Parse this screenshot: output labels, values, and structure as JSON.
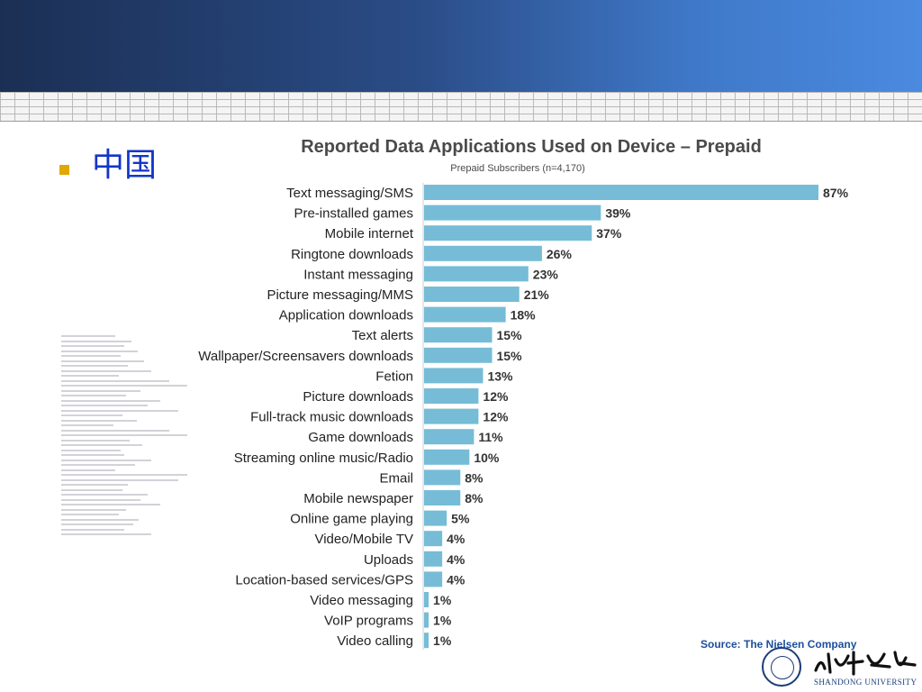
{
  "slide": {
    "bullet_text": "中国"
  },
  "source_text": "Source: The Nielsen Company",
  "logo": {
    "text": "山东大学",
    "subtitle": "SHANDONG UNIVERSITY"
  },
  "colors": {
    "bar": "#76bcd6",
    "bullet": "#e0a800",
    "bullet_text": "#1236c8",
    "header_dark": "#1b2f54",
    "header_light": "#4a8ae0",
    "source": "#1b4f9c"
  },
  "chart_data": {
    "type": "bar",
    "orientation": "horizontal",
    "title": "Reported Data Applications Used on Device – Prepaid",
    "subtitle": "Prepaid Subscribers (n=4,170)",
    "xlim": [
      0,
      87
    ],
    "grid": false,
    "legend": "none",
    "value_suffix": "%",
    "categories": [
      "Text  messaging/SMS",
      "Pre-installed games",
      "Mobile internet",
      "Ringtone downloads",
      "Instant messaging",
      "Picture messaging/MMS",
      "Application downloads",
      "Text  alerts",
      "Wallpaper/Screensavers downloads",
      "Fetion",
      "Picture downloads",
      "Full-track music downloads",
      "Game downloads",
      "Streaming online music/Radio",
      "Email",
      "Mobile newspaper",
      "Online game playing",
      "Video/Mobile TV",
      "Uploads",
      "Location-based services/GPS",
      "Video messaging",
      "VoIP programs",
      "Video calling"
    ],
    "values": [
      87,
      39,
      37,
      26,
      23,
      21,
      18,
      15,
      15,
      13,
      12,
      12,
      11,
      10,
      8,
      8,
      5,
      4,
      4,
      4,
      1,
      1,
      1
    ]
  }
}
